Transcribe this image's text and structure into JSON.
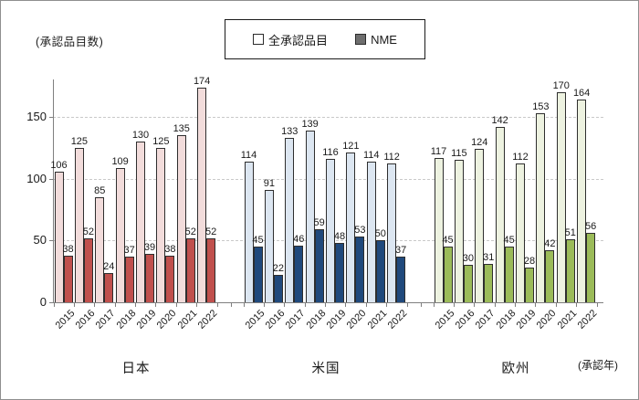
{
  "legend": {
    "items": [
      {
        "label": "全承認品目",
        "marker_color": "#FFFFFF"
      },
      {
        "label": "NME",
        "marker_color": "#6E6E6E"
      }
    ]
  },
  "chart_data": {
    "type": "bar",
    "title": "",
    "ylabel": "(承認品目数)",
    "xlabel": "(承認年)",
    "ylim": [
      0,
      180
    ],
    "yticks": [
      0,
      50,
      100,
      150
    ],
    "grid": "horizontal-dashed",
    "legend_position": "top-center",
    "legend": [
      "全承認品目",
      "NME"
    ],
    "categories": [
      "2015",
      "2016",
      "2017",
      "2018",
      "2019",
      "2020",
      "2021",
      "2022"
    ],
    "groups": [
      {
        "label": "日本",
        "series": [
          {
            "name": "全承認品目",
            "color": "#F2DCDB",
            "values": [
              106,
              125,
              85,
              109,
              130,
              125,
              135,
              174
            ]
          },
          {
            "name": "NME",
            "color": "#C0504D",
            "values": [
              38,
              52,
              24,
              37,
              39,
              38,
              52,
              52
            ]
          }
        ]
      },
      {
        "label": "米国",
        "series": [
          {
            "name": "全承認品目",
            "color": "#DCE6F1",
            "values": [
              114,
              91,
              133,
              139,
              116,
              121,
              114,
              112
            ]
          },
          {
            "name": "NME",
            "color": "#20497C",
            "values": [
              45,
              22,
              46,
              59,
              48,
              53,
              50,
              37
            ]
          }
        ]
      },
      {
        "label": "欧州",
        "series": [
          {
            "name": "全承認品目",
            "color": "#EDF2E0",
            "values": [
              117,
              115,
              124,
              142,
              112,
              153,
              170,
              164
            ]
          },
          {
            "name": "NME",
            "color": "#9BBB59",
            "values": [
              45,
              30,
              31,
              45,
              28,
              42,
              51,
              56
            ]
          }
        ]
      }
    ]
  }
}
